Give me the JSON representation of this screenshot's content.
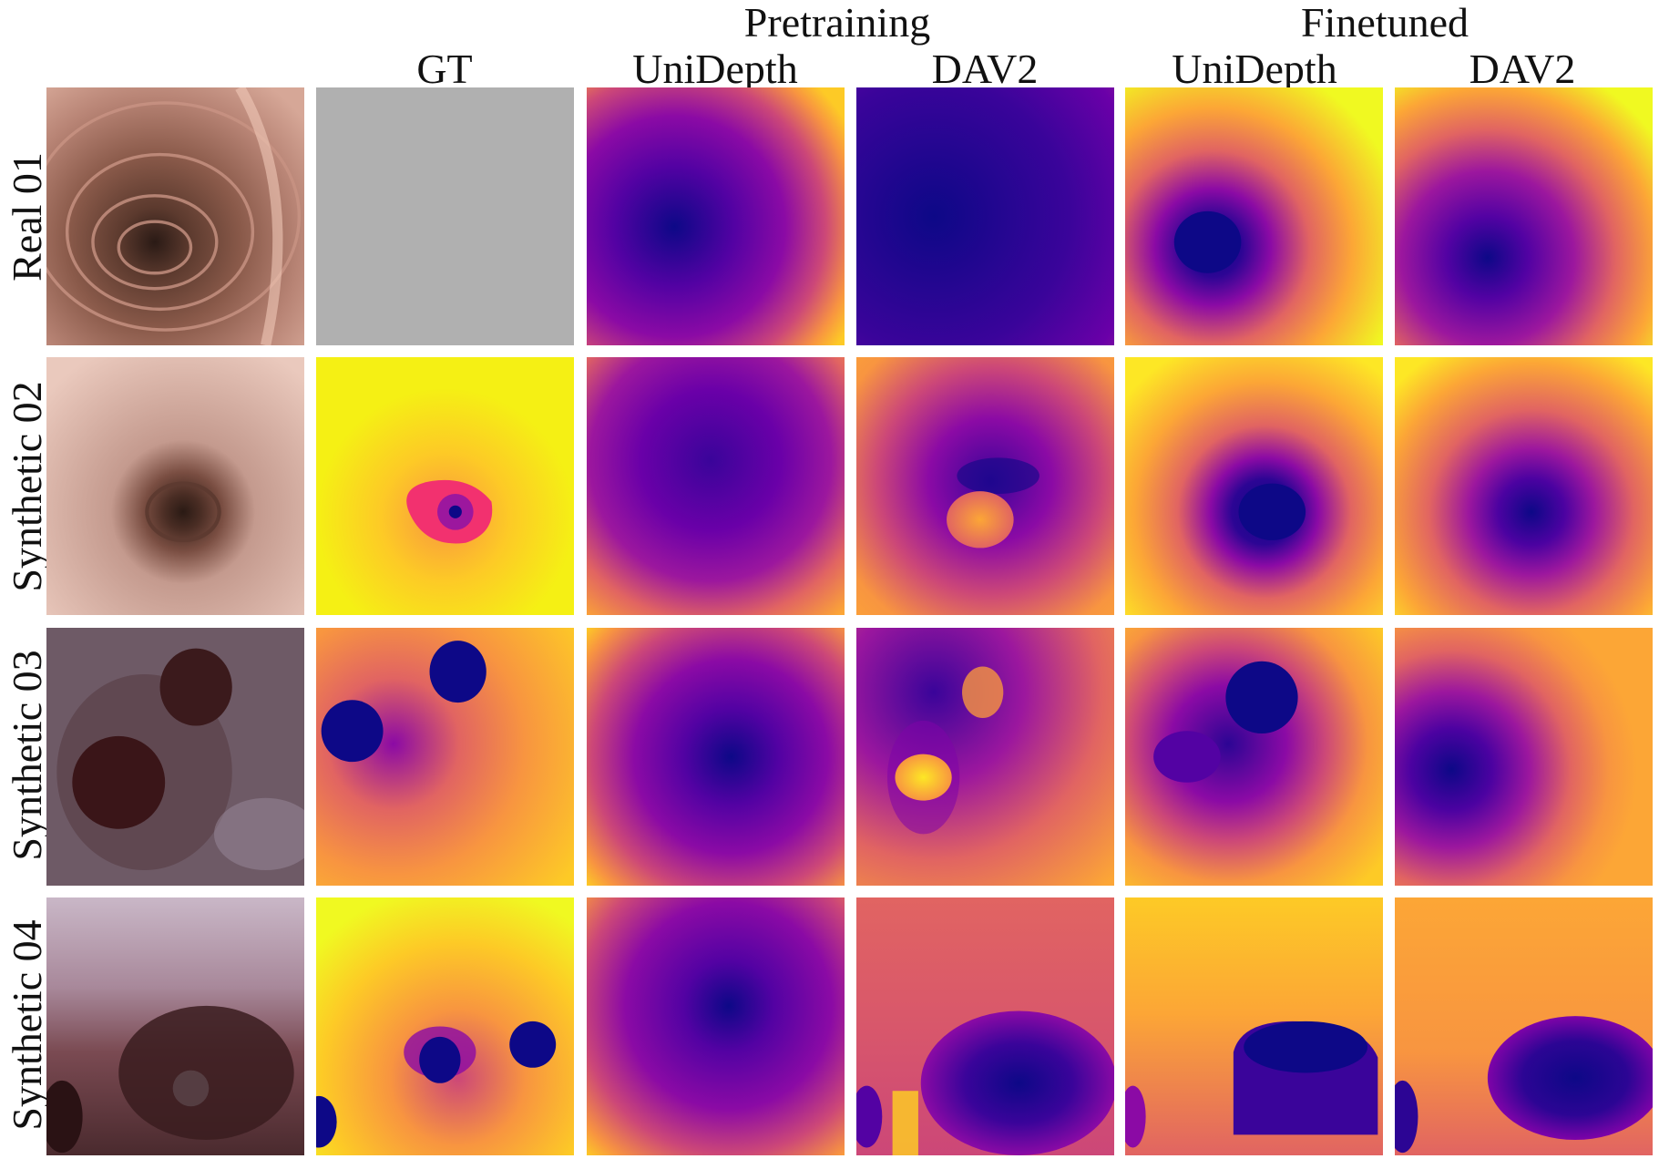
{
  "header": {
    "group_pretraining": "Pretraining",
    "group_finetuned": "Finetuned",
    "columns": [
      "GT",
      "UniDepth",
      "DAV2",
      "UniDepth",
      "DAV2"
    ]
  },
  "rows": [
    {
      "label": "Real 01"
    },
    {
      "label": "Synthetic 02"
    },
    {
      "label": "Synthetic 03"
    },
    {
      "label": "Synthetic 04"
    }
  ],
  "colors": {
    "plasma_dark": "#0d0887",
    "plasma_purple": "#7e03a8",
    "plasma_magenta": "#cc4778",
    "plasma_orange": "#f89540",
    "plasma_yellow": "#f0f921",
    "gt_missing_gray": "#b0b0b0",
    "gt_hot_pink": "#f2316f"
  }
}
